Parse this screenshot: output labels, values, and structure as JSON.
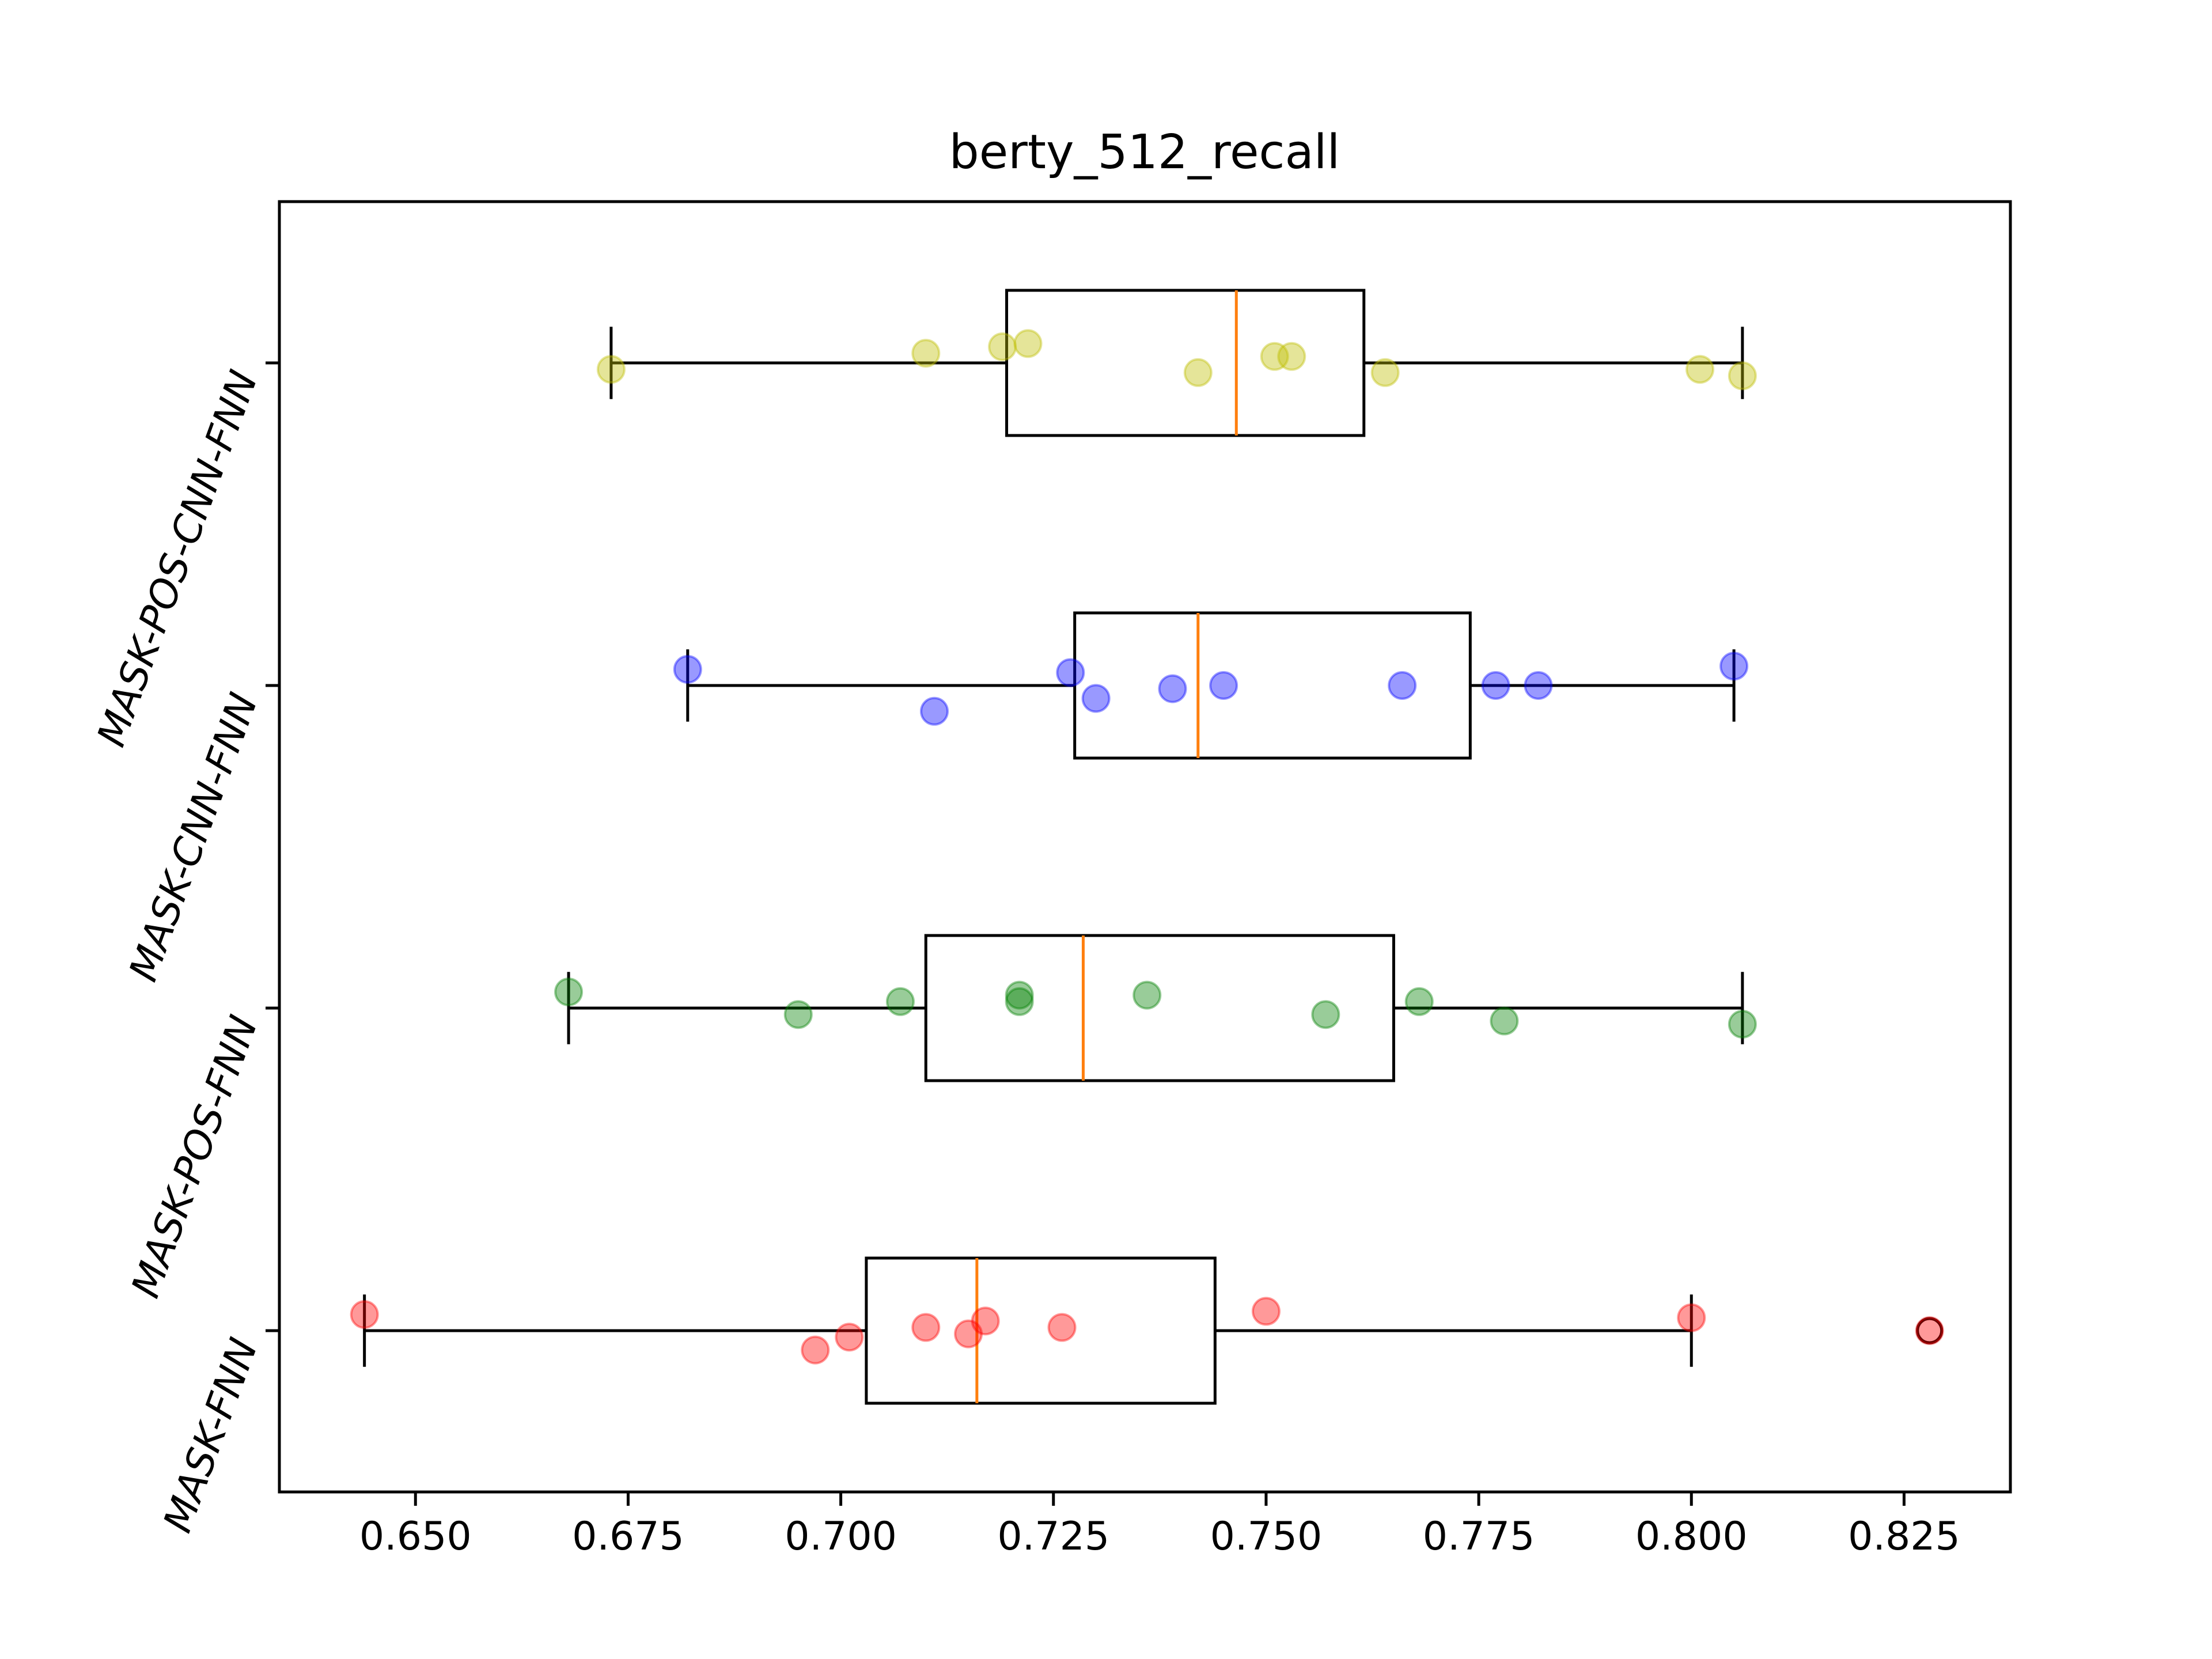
{
  "chart_data": {
    "type": "boxplot",
    "title": "berty_512_recall",
    "xlabel": "",
    "ylabel": "",
    "xlim": [
      0.634,
      0.8375
    ],
    "xticks": [
      "0.650",
      "0.675",
      "0.700",
      "0.725",
      "0.750",
      "0.775",
      "0.800",
      "0.825"
    ],
    "xtick_values": [
      0.65,
      0.675,
      0.7,
      0.725,
      0.75,
      0.775,
      0.8,
      0.825
    ],
    "grid": false,
    "categories": [
      "MASK-FNN",
      "MASK-POS-FNN",
      "MASK-CNN-FNN",
      "MASK-POS-CNN-FNN"
    ],
    "series": [
      {
        "name": "MASK-FNN",
        "color": "#ff0000",
        "whisker_low": 0.644,
        "q1": 0.703,
        "median": 0.716,
        "q3": 0.744,
        "whisker_high": 0.8,
        "outliers": [
          0.828
        ],
        "points": [
          [
            0.644,
            0.05
          ],
          [
            0.697,
            -0.06
          ],
          [
            0.701,
            -0.02
          ],
          [
            0.71,
            0.01
          ],
          [
            0.715,
            -0.01
          ],
          [
            0.717,
            0.03
          ],
          [
            0.726,
            0.01
          ],
          [
            0.75,
            0.06
          ],
          [
            0.8,
            0.04
          ],
          [
            0.828,
            0.0
          ]
        ]
      },
      {
        "name": "MASK-POS-FNN",
        "color": "#008000",
        "whisker_low": 0.668,
        "q1": 0.71,
        "median": 0.7285,
        "q3": 0.765,
        "whisker_high": 0.806,
        "outliers": [],
        "points": [
          [
            0.668,
            0.05
          ],
          [
            0.695,
            -0.02
          ],
          [
            0.707,
            0.02
          ],
          [
            0.721,
            0.04
          ],
          [
            0.721,
            0.02
          ],
          [
            0.736,
            0.04
          ],
          [
            0.757,
            -0.02
          ],
          [
            0.768,
            0.02
          ],
          [
            0.778,
            -0.04
          ],
          [
            0.806,
            -0.05
          ]
        ]
      },
      {
        "name": "MASK-CNN-FNN",
        "color": "#0000ff",
        "whisker_low": 0.682,
        "q1": 0.7275,
        "median": 0.742,
        "q3": 0.774,
        "whisker_high": 0.805,
        "outliers": [],
        "points": [
          [
            0.682,
            0.05
          ],
          [
            0.711,
            -0.08
          ],
          [
            0.727,
            0.04
          ],
          [
            0.73,
            -0.04
          ],
          [
            0.739,
            -0.01
          ],
          [
            0.745,
            0.0
          ],
          [
            0.766,
            0.0
          ],
          [
            0.777,
            0.0
          ],
          [
            0.782,
            0.0
          ],
          [
            0.805,
            0.06
          ]
        ]
      },
      {
        "name": "MASK-POS-CNN-FNN",
        "color": "#bfbf00",
        "whisker_low": 0.673,
        "q1": 0.7195,
        "median": 0.7465,
        "q3": 0.7615,
        "whisker_high": 0.806,
        "outliers": [],
        "points": [
          [
            0.673,
            -0.02
          ],
          [
            0.71,
            0.03
          ],
          [
            0.719,
            0.05
          ],
          [
            0.722,
            0.06
          ],
          [
            0.742,
            -0.03
          ],
          [
            0.751,
            0.02
          ],
          [
            0.753,
            0.02
          ],
          [
            0.764,
            -0.03
          ],
          [
            0.801,
            -0.02
          ],
          [
            0.806,
            -0.04
          ]
        ]
      }
    ],
    "box_color": "#000000",
    "median_color": "#ff7f0e"
  }
}
